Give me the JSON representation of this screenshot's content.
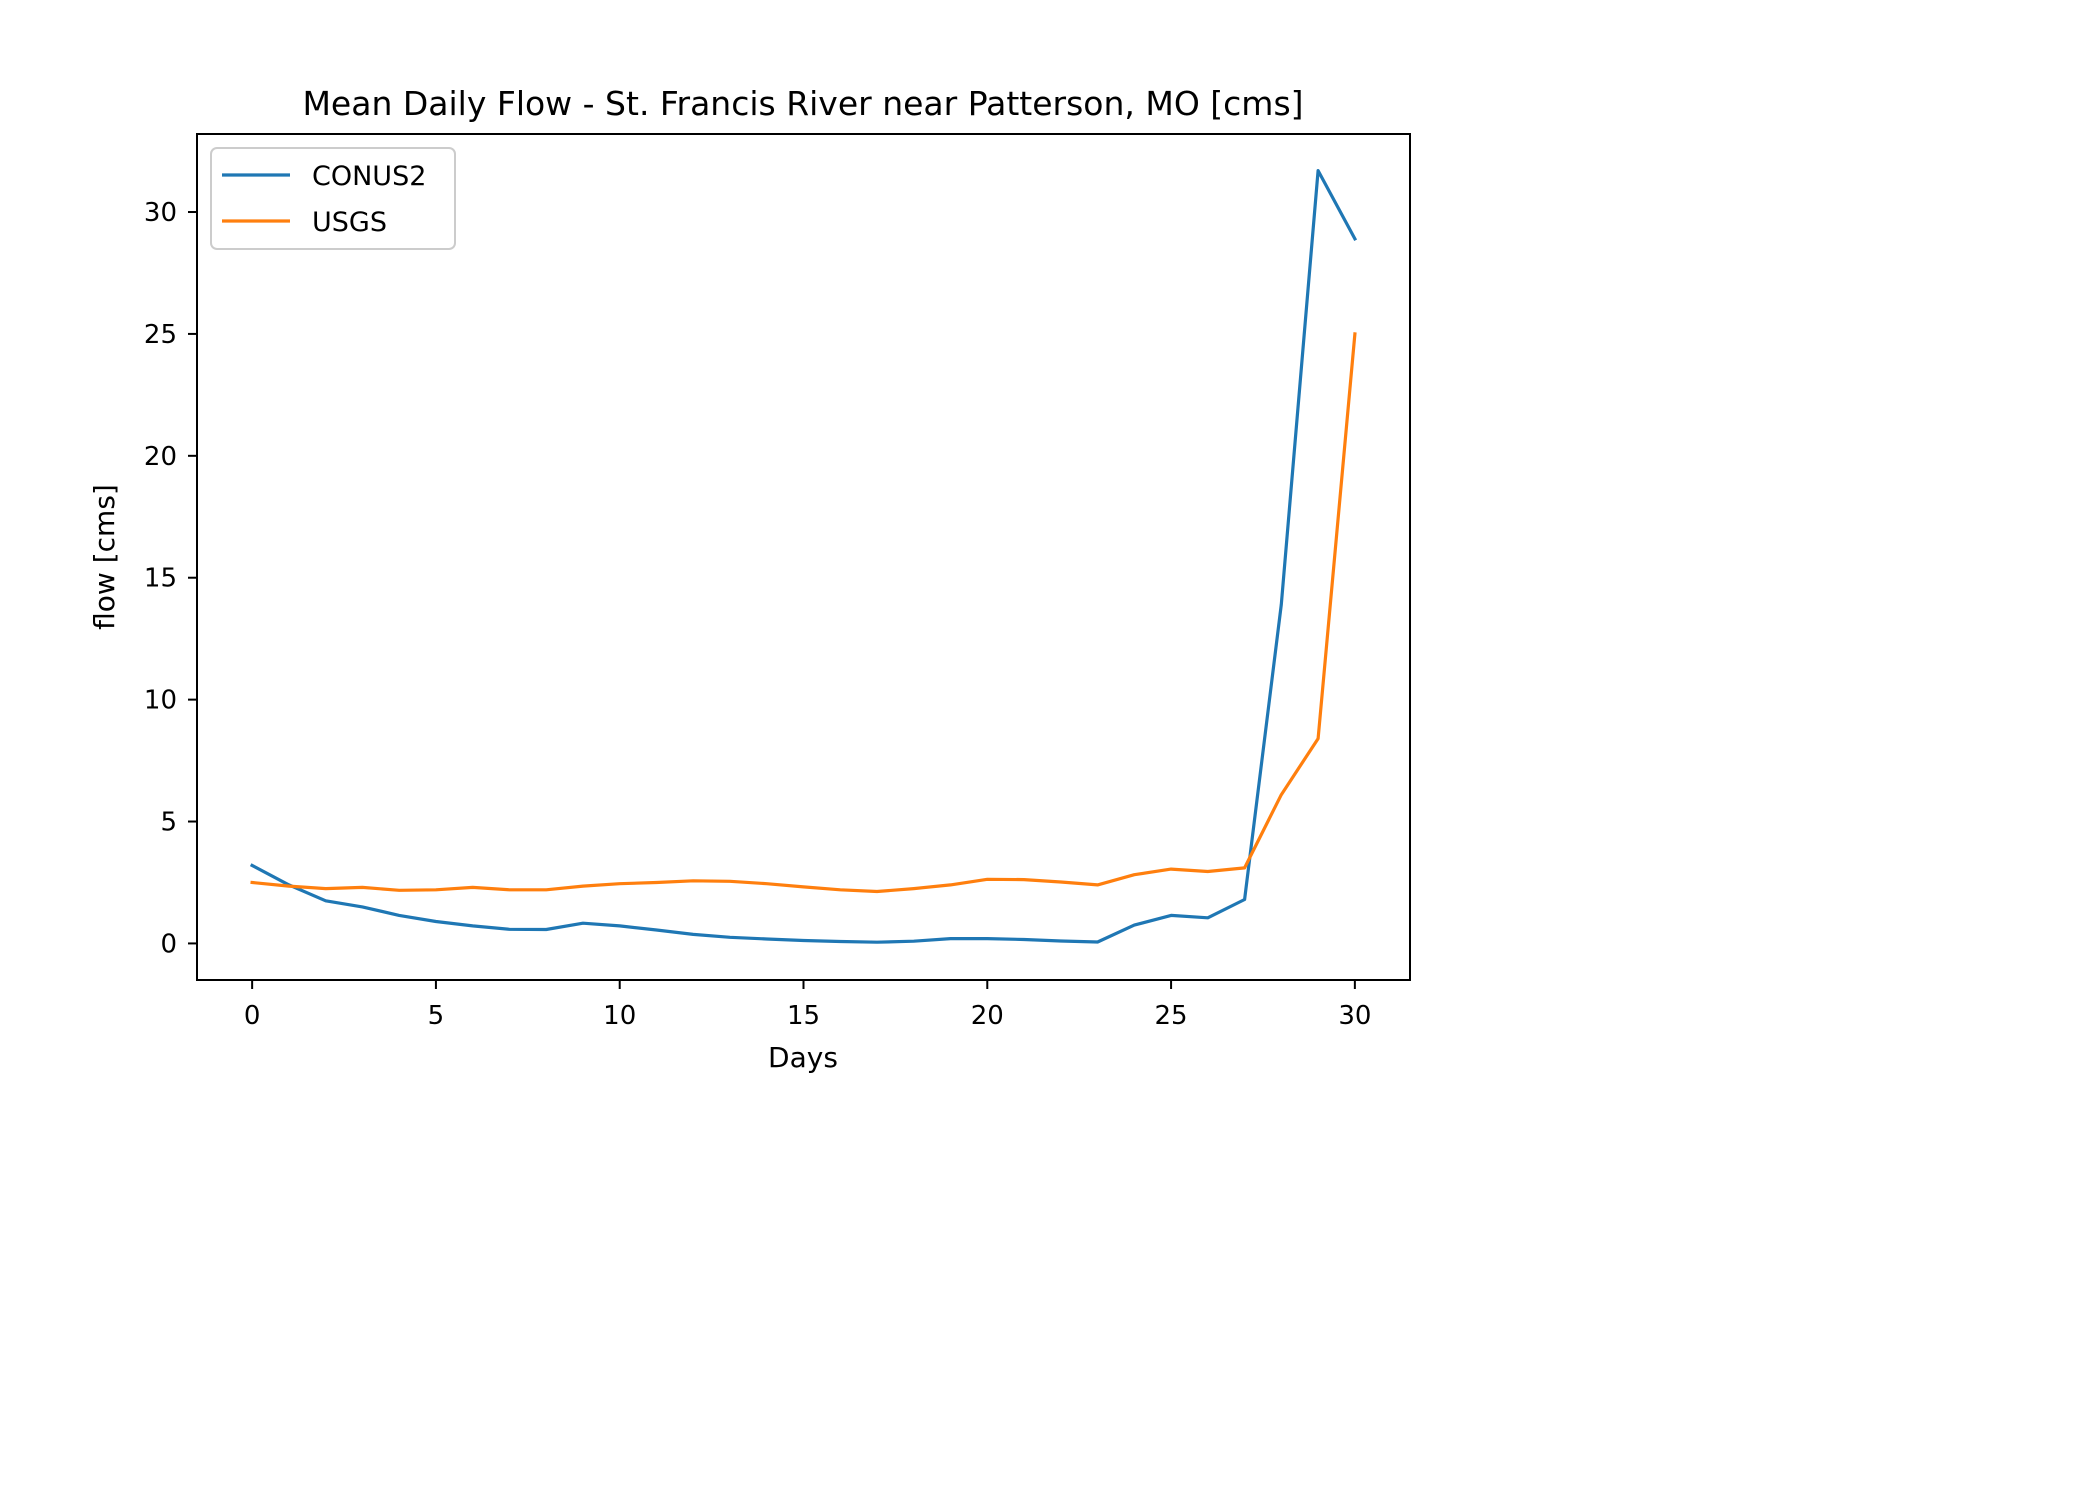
{
  "chart_data": {
    "type": "line",
    "title": "Mean Daily Flow - St. Francis River near Patterson, MO [cms]",
    "xlabel": "Days",
    "ylabel": "flow [cms]",
    "xlim": [
      -1.5,
      31.5
    ],
    "ylim": [
      -1.5,
      33.2
    ],
    "xticks": [
      0,
      5,
      10,
      15,
      20,
      25,
      30
    ],
    "yticks": [
      0,
      5,
      10,
      15,
      20,
      25,
      30
    ],
    "grid": false,
    "legend_position": "upper-left",
    "x": [
      0,
      1,
      2,
      3,
      4,
      5,
      6,
      7,
      8,
      9,
      10,
      11,
      12,
      13,
      14,
      15,
      16,
      17,
      18,
      19,
      20,
      21,
      22,
      23,
      24,
      25,
      26,
      27,
      28,
      29,
      30
    ],
    "series": [
      {
        "name": "CONUS2",
        "color": "#1f77b4",
        "values": [
          3.2,
          2.4,
          1.75,
          1.5,
          1.15,
          0.9,
          0.72,
          0.58,
          0.57,
          0.83,
          0.72,
          0.55,
          0.37,
          0.25,
          0.18,
          0.12,
          0.08,
          0.05,
          0.09,
          0.2,
          0.2,
          0.16,
          0.1,
          0.06,
          0.75,
          1.15,
          1.05,
          1.8,
          13.9,
          31.7,
          28.9
        ]
      },
      {
        "name": "USGS",
        "color": "#ff7f0e",
        "values": [
          2.5,
          2.35,
          2.25,
          2.3,
          2.18,
          2.2,
          2.3,
          2.2,
          2.2,
          2.35,
          2.45,
          2.5,
          2.57,
          2.55,
          2.45,
          2.32,
          2.2,
          2.13,
          2.25,
          2.4,
          2.63,
          2.62,
          2.52,
          2.4,
          2.82,
          3.05,
          2.95,
          3.1,
          6.1,
          8.4,
          25.0
        ]
      }
    ]
  }
}
